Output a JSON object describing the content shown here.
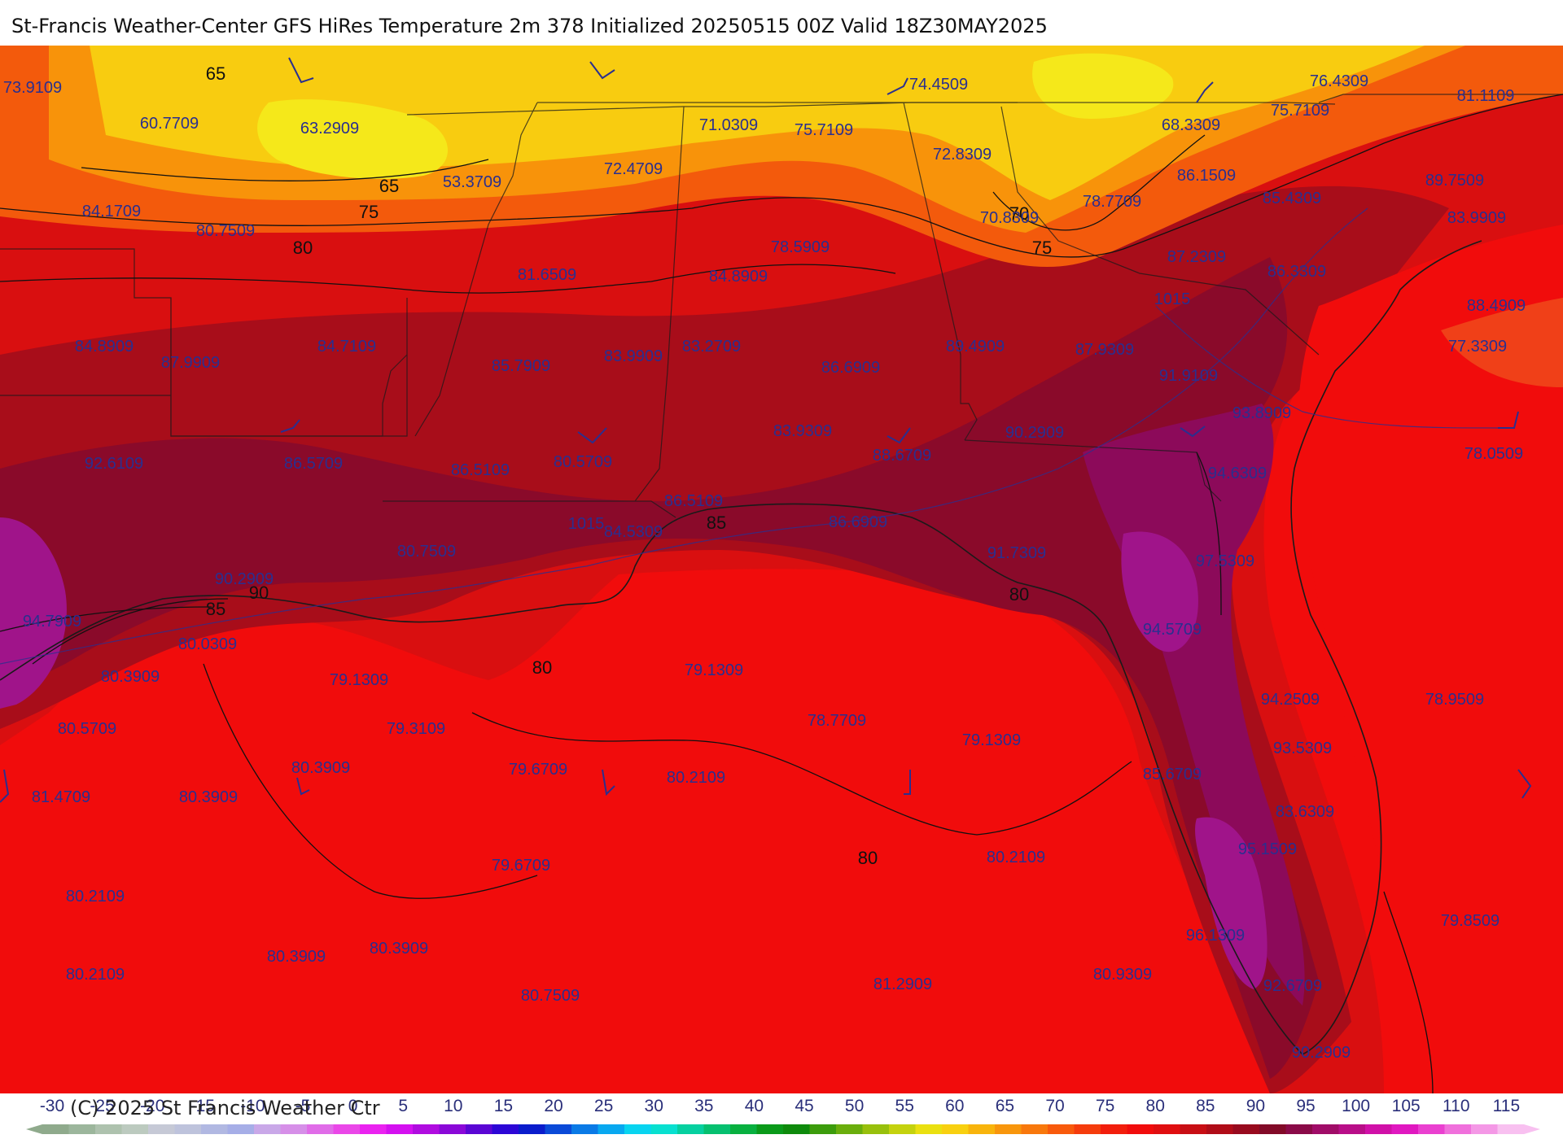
{
  "header": {
    "title": "St-Francis Weather-Center GFS HiRes Temperature 2m  378 Initialized 20250515 00Z Valid 18Z30MAY2025"
  },
  "footer": {
    "copyright": "(C) 2025 St Francis Weather Ctr"
  },
  "colors": {
    "gulf_red": "#f10c0c",
    "warm_red": "#d90f10",
    "dark_red": "#a80d1a",
    "maroon": "#8a0a2a",
    "purple": "#8c0a5a",
    "magenta": "#a0148a",
    "orange": "#f35a0c",
    "light_orange": "#f8930a",
    "yellow": "#f8cc10",
    "bright_yellow": "#f5e81a"
  },
  "map": {
    "isotherm_labels": [
      "65",
      "65",
      "75",
      "80",
      "70",
      "75",
      "85",
      "90",
      "85",
      "80",
      "80",
      "80"
    ],
    "pressure_labels": [
      "1015",
      "1015"
    ],
    "value_labels": [
      "73.9109",
      "60.7709",
      "63.2909",
      "53.3709",
      "72.4709",
      "71.0309",
      "75.7109",
      "74.4509",
      "72.8309",
      "68.3309",
      "76.4309",
      "75.7109",
      "81.1109",
      "84.1709",
      "80.7509",
      "81.6509",
      "78.5909",
      "84.8909",
      "86.1509",
      "78.7709",
      "85.4309",
      "89.7509",
      "83.9909",
      "87.2309",
      "86.3309",
      "70.8309",
      "84.8909",
      "87.9909",
      "84.7109",
      "85.7909",
      "83.9909",
      "83.2709",
      "86.6909",
      "89.4909",
      "87.9309",
      "88.4909",
      "77.3309",
      "91.9109",
      "93.8909",
      "83.9309",
      "88.6709",
      "90.2909",
      "92.6109",
      "86.5709",
      "86.5109",
      "80.5709",
      "94.6309",
      "78.0509",
      "86.5109",
      "84.5309",
      "86.6909",
      "91.7309",
      "97.5309",
      "80.7509",
      "90.2909",
      "94.7909",
      "80.0309",
      "94.5709",
      "80.3909",
      "79.1309",
      "79.1309",
      "80.5709",
      "79.3109",
      "78.7709",
      "79.1309",
      "94.2509",
      "93.5309",
      "78.9509",
      "80.3909",
      "79.6709",
      "80.2109",
      "81.4709",
      "80.3909",
      "85.6709",
      "83.6309",
      "95.1509",
      "80.2109",
      "79.6709",
      "80.2109",
      "96.1309",
      "79.8509",
      "80.3909",
      "80.3909",
      "80.2109",
      "80.7509",
      "81.2909",
      "80.9309",
      "92.6709",
      "90.2909"
    ]
  },
  "legend": {
    "ticks": [
      "-30",
      "-25",
      "-20",
      "-15",
      "-10",
      "-5",
      "0",
      "5",
      "10",
      "15",
      "20",
      "25",
      "30",
      "35",
      "40",
      "45",
      "50",
      "55",
      "60",
      "65",
      "70",
      "75",
      "80",
      "85",
      "90",
      "95",
      "100",
      "105",
      "110",
      "115"
    ],
    "swatches": [
      "#8faa8c",
      "#9cb69c",
      "#aec2ae",
      "#bccabf",
      "#c6c9d6",
      "#bec3dc",
      "#b1b8e2",
      "#a6aee7",
      "#c9a8e8",
      "#d68fe8",
      "#e06ce8",
      "#ea47e8",
      "#ea22f0",
      "#d410f0",
      "#b00ce0",
      "#8a08d8",
      "#5a06d4",
      "#2c06d6",
      "#0a1ccc",
      "#0a4ad8",
      "#0a7ae6",
      "#08a8f0",
      "#08d4f0",
      "#08e0d0",
      "#06d0a0",
      "#06c070",
      "#08b040",
      "#0a9a1a",
      "#0e8a0c",
      "#3c9c0c",
      "#6aae0c",
      "#98c00c",
      "#c4d20e",
      "#eae010",
      "#f8d010",
      "#f8b40c",
      "#f8960c",
      "#f8780c",
      "#f85a0c",
      "#f53c0c",
      "#f21e0c",
      "#f10c0c",
      "#e00e10",
      "#c80e14",
      "#b00c18",
      "#980a1e",
      "#820a28",
      "#8a0a48",
      "#a00c68",
      "#b80e88",
      "#d010a8",
      "#e018c0",
      "#ea40d0",
      "#f070dc",
      "#f498e6",
      "#f8c0f0"
    ]
  }
}
